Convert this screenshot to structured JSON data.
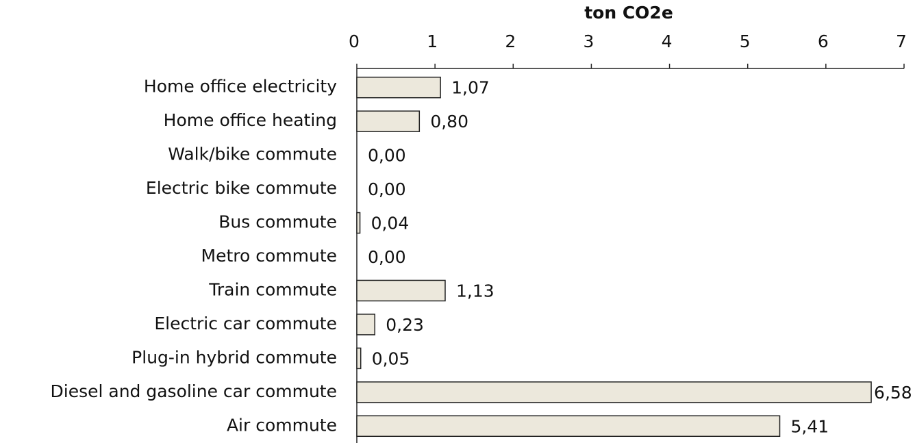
{
  "chart_data": {
    "type": "bar",
    "orientation": "horizontal",
    "axis_position": "top",
    "xlabel": "ton CO2e",
    "categories": [
      "Home office electricity",
      "Home office heating",
      "Walk/bike commute",
      "Electric bike commute",
      "Bus commute",
      "Metro commute",
      "Train commute",
      "Electric car commute",
      "Plug-in hybrid commute",
      "Diesel and gasoline car commute",
      "Air commute"
    ],
    "values": [
      1.07,
      0.8,
      0.0,
      0.0,
      0.04,
      0.0,
      1.13,
      0.23,
      0.05,
      6.58,
      5.41
    ],
    "value_labels": [
      "1,07",
      "0,80",
      "0,00",
      "0,00",
      "0,04",
      "0,00",
      "1,13",
      "0,23",
      "0,05",
      "6,58",
      "5,41"
    ],
    "color": "#ece8dc",
    "edgecolor": "#222222",
    "xlim": [
      0,
      7
    ],
    "xticks": [
      0,
      1,
      2,
      3,
      4,
      5,
      6,
      7
    ],
    "grid": false
  }
}
